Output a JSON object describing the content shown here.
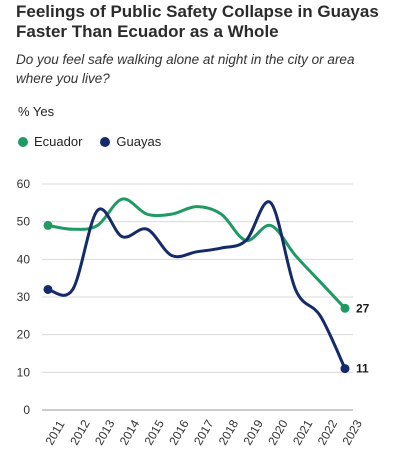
{
  "chart_data": {
    "type": "line",
    "title": "Feelings of Public Safety Collapse in Guayas Faster Than Ecuador as a Whole",
    "subtitle": "Do you feel safe walking alone at night in the city or area where you live?",
    "ylabel": "% Yes",
    "categories": [
      "2011",
      "2012",
      "2013",
      "2014",
      "2015",
      "2016",
      "2017",
      "2018",
      "2019",
      "2020",
      "2021",
      "2022",
      "2023"
    ],
    "series": [
      {
        "name": "Ecuador",
        "color": "#1f9a63",
        "values": [
          49,
          48,
          49,
          56,
          52,
          52,
          54,
          52,
          45,
          49,
          41,
          34,
          27
        ],
        "end_label": "27"
      },
      {
        "name": "Guayas",
        "color": "#152a6b",
        "values": [
          32,
          32,
          53,
          46,
          48,
          41,
          42,
          43,
          45,
          55,
          32,
          25,
          11
        ],
        "end_label": "11"
      }
    ],
    "ylim": [
      0,
      60
    ],
    "yticks": [
      0,
      10,
      20,
      30,
      40,
      50,
      60
    ],
    "grid": true,
    "legend": "top-left"
  }
}
